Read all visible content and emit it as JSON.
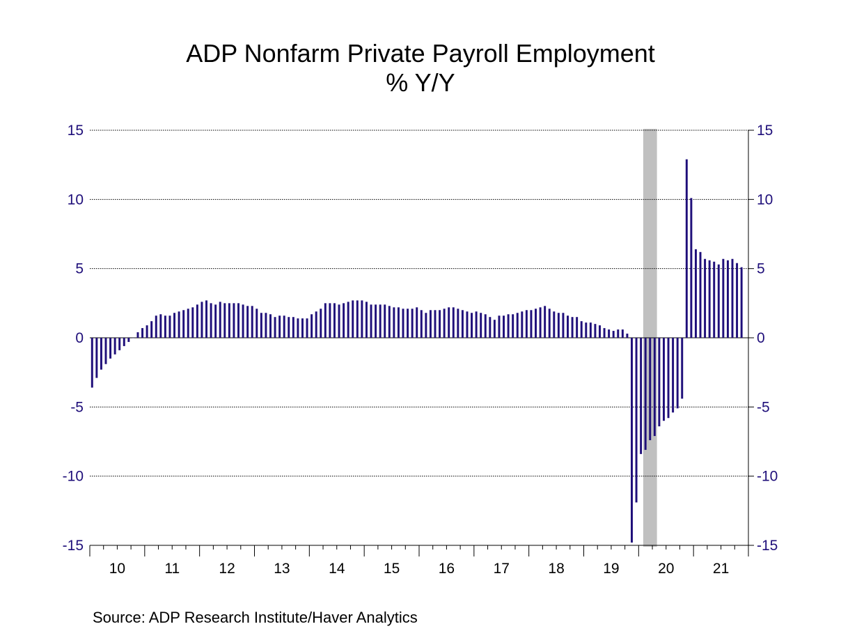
{
  "title": "ADP Nonfarm Private Payroll Employment",
  "subtitle": "% Y/Y",
  "source": "Source:  ADP Research Institute/Haver Analytics",
  "chart_data": {
    "type": "bar",
    "start": "2010-01",
    "frequency": "monthly",
    "y_ticks": [
      15,
      10,
      5,
      0,
      -5,
      -10,
      -15
    ],
    "y_tick_labels": [
      "15",
      "10",
      "5",
      "0",
      "-5",
      "-10",
      "-15"
    ],
    "ylim": [
      -15,
      15
    ],
    "x_tick_labels": [
      "10",
      "11",
      "12",
      "13",
      "14",
      "15",
      "16",
      "17",
      "18",
      "19",
      "20",
      "21"
    ],
    "grid": true,
    "dual_y_axis": true,
    "bar_color": "#1f0f7a",
    "recession_shade": {
      "start": "2020-02",
      "end": "2020-04",
      "color": "#c0c0c0"
    },
    "values": [
      -3.6,
      -2.9,
      -2.3,
      -1.9,
      -1.5,
      -1.2,
      -0.9,
      -0.6,
      -0.3,
      0.0,
      0.4,
      0.7,
      0.9,
      1.2,
      1.6,
      1.7,
      1.6,
      1.6,
      1.8,
      1.9,
      2.0,
      2.1,
      2.2,
      2.4,
      2.6,
      2.7,
      2.5,
      2.4,
      2.6,
      2.5,
      2.5,
      2.5,
      2.5,
      2.4,
      2.3,
      2.3,
      2.1,
      1.8,
      1.8,
      1.7,
      1.5,
      1.6,
      1.6,
      1.5,
      1.5,
      1.4,
      1.4,
      1.4,
      1.7,
      1.9,
      2.1,
      2.5,
      2.5,
      2.5,
      2.4,
      2.5,
      2.6,
      2.7,
      2.7,
      2.7,
      2.6,
      2.4,
      2.4,
      2.4,
      2.4,
      2.3,
      2.2,
      2.2,
      2.1,
      2.1,
      2.1,
      2.2,
      2.0,
      1.8,
      2.0,
      2.0,
      2.0,
      2.1,
      2.2,
      2.2,
      2.1,
      2.0,
      1.9,
      1.8,
      1.9,
      1.8,
      1.7,
      1.5,
      1.3,
      1.6,
      1.6,
      1.7,
      1.7,
      1.8,
      1.9,
      2.0,
      2.0,
      2.1,
      2.2,
      2.3,
      2.1,
      1.9,
      1.8,
      1.8,
      1.6,
      1.5,
      1.5,
      1.2,
      1.1,
      1.1,
      1.0,
      0.9,
      0.7,
      0.6,
      0.5,
      0.6,
      0.6,
      0.3,
      -14.8,
      -11.9,
      -8.4,
      -8.1,
      -7.4,
      -7.1,
      -6.4,
      -6.0,
      -5.8,
      -5.4,
      -5.1,
      -4.4,
      12.9,
      10.1,
      6.4,
      6.2,
      5.7,
      5.6,
      5.5,
      5.3,
      5.7,
      5.6,
      5.7,
      5.4,
      5.1
    ]
  }
}
